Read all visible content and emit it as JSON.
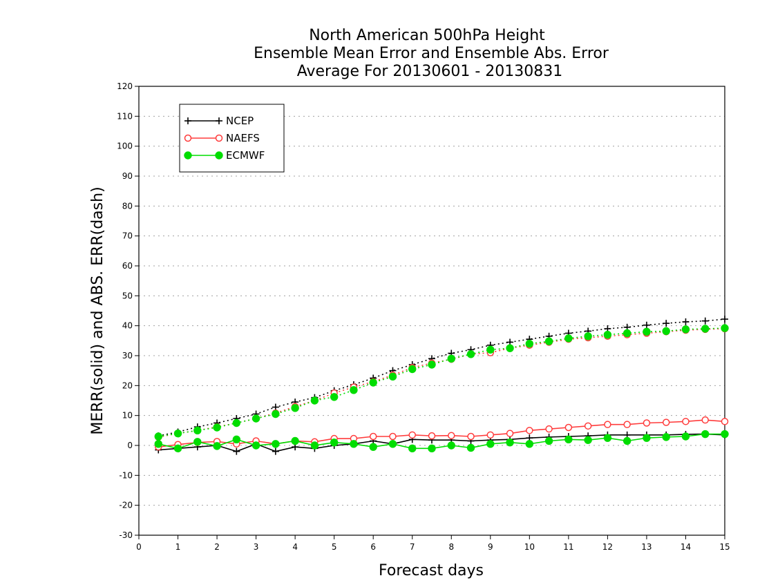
{
  "chart_data": {
    "type": "line",
    "title_lines": [
      "North American 500hPa Height",
      "Ensemble Mean Error and Ensemble Abs. Error",
      "Average For 20130601 - 20130831"
    ],
    "xlabel": "Forecast days",
    "ylabel": "MERR(solid) and ABS. ERR(dash)",
    "xlim": [
      0,
      15
    ],
    "ylim": [
      -30,
      120
    ],
    "xticks": [
      "0",
      "1",
      "2",
      "3",
      "4",
      "5",
      "6",
      "7",
      "8",
      "9",
      "10",
      "11",
      "12",
      "13",
      "14",
      "15"
    ],
    "yticks": [
      "-30",
      "-20",
      "-10",
      "0",
      "10",
      "20",
      "30",
      "40",
      "50",
      "60",
      "70",
      "80",
      "90",
      "100",
      "110",
      "120"
    ],
    "grid": true,
    "legend_position": "top-left",
    "x": [
      0.5,
      1,
      1.5,
      2,
      2.5,
      3,
      3.5,
      4,
      4.5,
      5,
      5.5,
      6,
      6.5,
      7,
      7.5,
      8,
      8.5,
      9,
      9.5,
      10,
      10.5,
      11,
      11.5,
      12,
      12.5,
      13,
      13.5,
      14,
      14.5,
      15
    ],
    "series": [
      {
        "name": "NCEP",
        "color": "#000000",
        "marker": "plus",
        "merr": [
          -1.5,
          -1,
          -0.5,
          0,
          -2,
          0.5,
          -2,
          -0.5,
          -1,
          0,
          0.5,
          1.5,
          0.5,
          2,
          1.8,
          1.8,
          1.5,
          1.8,
          2,
          2.5,
          2.8,
          3,
          3.2,
          3.5,
          3.5,
          3.5,
          3.5,
          3.7,
          3.8,
          3.5
        ],
        "abs_err": [
          3.2,
          4.5,
          6.2,
          7.5,
          9,
          10.5,
          12.8,
          14.5,
          16,
          18.3,
          20.3,
          22.5,
          25,
          27,
          29,
          30.8,
          32,
          33.5,
          34.5,
          35.5,
          36.5,
          37.5,
          38.2,
          39,
          39.5,
          40.2,
          40.8,
          41.3,
          41.6,
          42.2
        ]
      },
      {
        "name": "NAEFS",
        "color": "#ff3b3b",
        "marker": "open-circle",
        "merr": [
          -0.5,
          0.3,
          1,
          1.3,
          0.5,
          1.5,
          0.5,
          1.5,
          1.2,
          2.3,
          2.3,
          3,
          3,
          3.5,
          3.2,
          3.3,
          3,
          3.5,
          4,
          5,
          5.5,
          6,
          6.5,
          7,
          7,
          7.5,
          7.7,
          8,
          8.5,
          8
        ],
        "abs_err": [
          2.8,
          4,
          5,
          6.2,
          7.5,
          9,
          10.8,
          13,
          15,
          17.5,
          19.5,
          21.3,
          23.5,
          26,
          27.5,
          28.8,
          30.5,
          31,
          32.5,
          33.5,
          34.5,
          35.5,
          36,
          36.5,
          37,
          37.5,
          38,
          38.5,
          38.8,
          39
        ]
      },
      {
        "name": "ECMWF",
        "color": "#00dd00",
        "marker": "filled-circle",
        "merr": [
          0.5,
          -1,
          1.2,
          -0.2,
          2,
          0,
          0.5,
          1.5,
          0,
          1,
          0.5,
          -0.5,
          0.5,
          -1,
          -1,
          0,
          -0.8,
          0.5,
          1,
          0.5,
          1.5,
          2,
          1.8,
          2.5,
          1.5,
          2.5,
          2.8,
          3,
          3.8,
          3.8
        ],
        "abs_err": [
          3,
          4,
          5,
          6,
          7.5,
          9,
          10.5,
          12.5,
          15,
          16.2,
          18.5,
          21,
          23,
          25.5,
          27,
          29,
          30.5,
          32,
          32.5,
          34,
          34.8,
          35.8,
          36.5,
          37,
          37.5,
          38,
          38.2,
          38.8,
          39,
          39.2
        ]
      }
    ]
  }
}
